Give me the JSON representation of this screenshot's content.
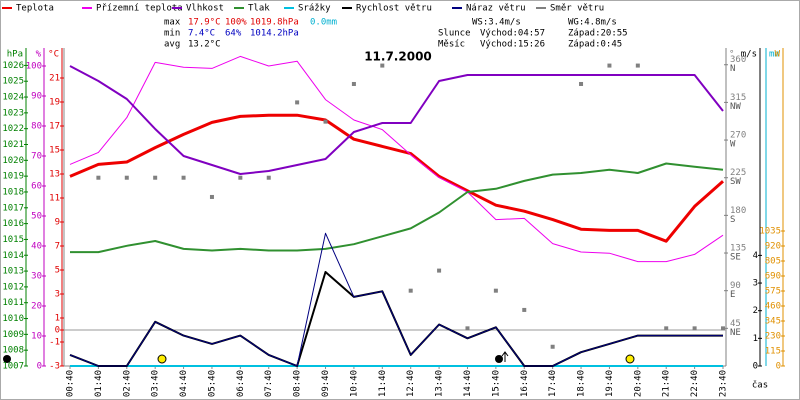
{
  "chart_data": {
    "type": "line",
    "title": "11.7.2000",
    "x_label": "čas",
    "categories": [
      "00:40",
      "01:40",
      "02:40",
      "03:40",
      "04:40",
      "05:40",
      "06:40",
      "07:40",
      "08:40",
      "09:40",
      "10:40",
      "11:40",
      "12:40",
      "13:40",
      "14:40",
      "15:40",
      "16:40",
      "17:40",
      "18:40",
      "19:40",
      "20:40",
      "21:40",
      "22:40",
      "23:40"
    ],
    "y_axes": [
      {
        "label": "hPa",
        "color": "#008000",
        "lim": [
          1007,
          1027.1
        ],
        "ticks": [
          1007,
          1008,
          1009,
          1010,
          1011,
          1012,
          1013,
          1014,
          1015,
          1016,
          1017,
          1018,
          1019,
          1020,
          1021,
          1022,
          1023,
          1024,
          1025,
          1026
        ]
      },
      {
        "label": "%",
        "color": "#c000c0",
        "lim": [
          0,
          106
        ],
        "ticks": [
          0,
          10,
          20,
          30,
          40,
          50,
          60,
          70,
          80,
          90,
          100
        ]
      },
      {
        "label": "°C",
        "color": "#e00000",
        "lim": [
          -3,
          23.5
        ],
        "ticks": [
          -3,
          -1,
          0,
          1,
          3,
          5,
          7,
          9,
          11,
          13,
          15,
          17,
          19,
          21
        ]
      },
      {
        "label": "°",
        "color": "#808080",
        "lim": [
          0,
          380
        ],
        "ticks": [
          45,
          90,
          135,
          180,
          225,
          270,
          315,
          360
        ],
        "tick_names": [
          "NE",
          "E",
          "SE",
          "S",
          "SW",
          "W",
          "NW",
          "N"
        ]
      },
      {
        "label": "m/s",
        "color": "#000000",
        "lim": [
          0,
          11.5
        ],
        "ticks": [
          0,
          1,
          2,
          3,
          4
        ]
      },
      {
        "label": "mm",
        "color": "#00b0d0",
        "lim": [
          0,
          10
        ],
        "ticks": []
      },
      {
        "label": "W",
        "color": "#e09000",
        "lim": [
          0,
          2438
        ],
        "ticks": [
          0,
          115,
          230,
          345,
          460,
          575,
          690,
          805,
          920,
          1035
        ]
      }
    ],
    "series": [
      {
        "name": "Teplota",
        "color": "#ee0000",
        "axis": 2,
        "width": 3,
        "values": [
          12.8,
          13.8,
          14.0,
          15.2,
          16.3,
          17.3,
          17.8,
          17.9,
          17.9,
          17.5,
          15.9,
          15.3,
          14.7,
          12.8,
          11.6,
          10.4,
          9.9,
          9.2,
          8.4,
          8.3,
          8.3,
          7.4,
          10.3,
          12.4
        ]
      },
      {
        "name": "Přízemní teplota",
        "color": "#ee00ee",
        "axis": 2,
        "width": 1,
        "values": [
          13.8,
          14.8,
          17.7,
          22.3,
          21.9,
          21.8,
          22.8,
          22.0,
          22.4,
          19.2,
          17.5,
          16.7,
          14.6,
          12.7,
          11.5,
          9.2,
          9.3,
          7.2,
          6.5,
          6.4,
          5.7,
          5.7,
          6.3,
          7.9
        ]
      },
      {
        "name": "Vlhkost",
        "color": "#8000c0",
        "axis": 1,
        "width": 2,
        "values": [
          100,
          95,
          89,
          79,
          70,
          67,
          64,
          65,
          67,
          69,
          78,
          81,
          81,
          95,
          97,
          97,
          97,
          97,
          97,
          97,
          97,
          97,
          97,
          85
        ]
      },
      {
        "name": "Tlak",
        "color": "#309030",
        "axis": 0,
        "width": 2,
        "values": [
          1014.2,
          1014.2,
          1014.6,
          1014.9,
          1014.4,
          1014.3,
          1014.4,
          1014.3,
          1014.3,
          1014.4,
          1014.7,
          1015.2,
          1015.7,
          1016.7,
          1018.0,
          1018.2,
          1018.7,
          1019.1,
          1019.2,
          1019.4,
          1019.2,
          1019.8,
          1019.6,
          1019.4
        ]
      },
      {
        "name": "Srážky",
        "color": "#00c0e0",
        "axis": 5,
        "width": 2,
        "values": [
          0,
          0,
          0,
          0,
          0,
          0,
          0,
          0,
          0,
          0,
          0,
          0,
          0,
          0,
          0,
          0,
          0,
          0,
          0,
          0,
          0,
          0,
          0,
          0
        ]
      },
      {
        "name": "Rychlost větru",
        "color": "#000000",
        "axis": 4,
        "width": 2,
        "values": [
          0.4,
          0,
          0,
          1.6,
          1.1,
          0.8,
          1.1,
          0.4,
          0,
          3.4,
          2.5,
          2.7,
          0.4,
          1.5,
          1.0,
          1.4,
          0,
          0,
          0.5,
          0.8,
          1.1,
          1.1,
          1.1,
          1.1
        ]
      },
      {
        "name": "Náraz větru",
        "color": "#000080",
        "axis": 4,
        "width": 1,
        "values": [
          0.4,
          0,
          0,
          1.6,
          1.1,
          0.8,
          1.1,
          0.4,
          0,
          4.8,
          2.5,
          2.7,
          0.4,
          1.5,
          1.0,
          1.4,
          0,
          0,
          0.5,
          0.8,
          1.1,
          1.1,
          1.1,
          1.1
        ]
      },
      {
        "name": "Směr větru",
        "color": "#808080",
        "axis": 3,
        "points": true,
        "values": [
          null,
          225,
          225,
          225,
          225,
          202,
          225,
          225,
          315,
          292,
          337,
          359,
          90,
          114,
          45,
          90,
          67,
          23,
          337,
          359,
          359,
          45,
          45,
          45
        ]
      }
    ],
    "stats": [
      {
        "label": "max",
        "values": [
          "17.9°C",
          "100%",
          "1019.8hPa",
          "0.0mm"
        ]
      },
      {
        "label": "min",
        "values": [
          "7.4°C",
          "64%",
          "1014.2hPa"
        ]
      },
      {
        "label": "avg",
        "values": [
          "13.2°C"
        ]
      }
    ],
    "info": [
      "WS:3.4m/s",
      "WG:4.8m/s",
      "Slunce",
      "Východ:04:57",
      "Západ:20:55",
      "Měsíc",
      "Východ:15:26",
      "Západ:0:45"
    ]
  }
}
